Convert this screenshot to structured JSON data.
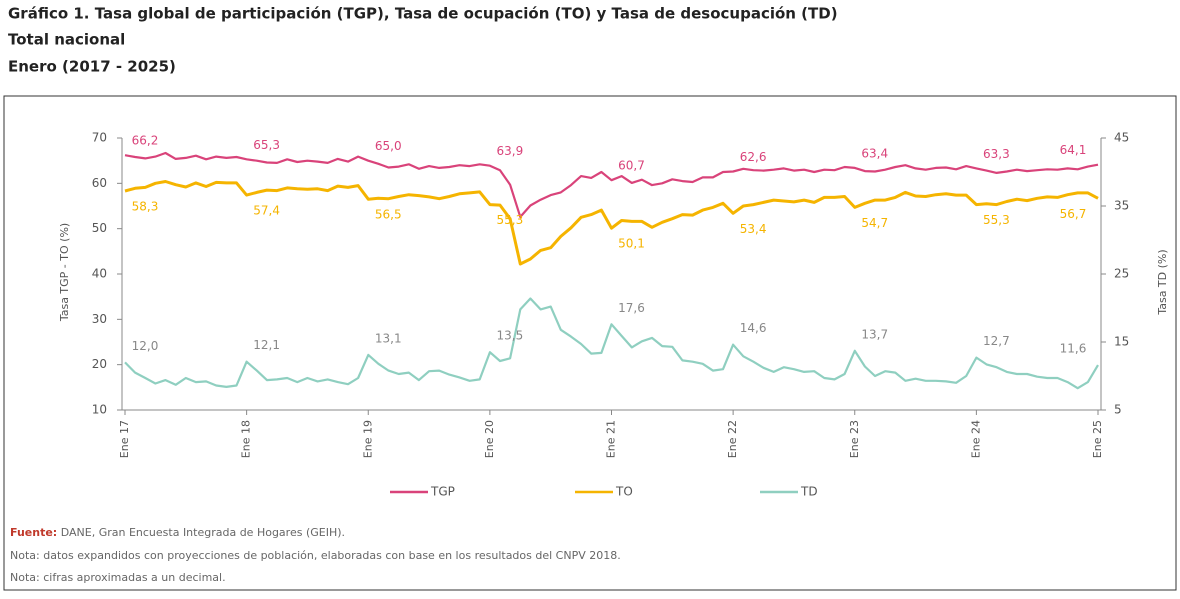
{
  "chart_data": {
    "type": "line",
    "title": "Gráfico 1. Tasa global de participación (TGP), Tasa de ocupación (TO) y Tasa de desocupación (TD)",
    "subtitle": [
      "Total nacional",
      "Enero (2017 - 2025)"
    ],
    "ylabel": "Tasa TGP - TO (%)",
    "y2label": "Tasa TD (%)",
    "categories": [
      "Ene 17",
      null,
      null,
      null,
      null,
      null,
      null,
      null,
      null,
      null,
      null,
      null,
      "Ene 18",
      null,
      null,
      null,
      null,
      null,
      null,
      null,
      null,
      null,
      null,
      null,
      "Ene 19",
      null,
      null,
      null,
      null,
      null,
      null,
      null,
      null,
      null,
      null,
      null,
      "Ene 20",
      null,
      null,
      null,
      null,
      null,
      null,
      null,
      null,
      null,
      null,
      null,
      "Ene 21",
      null,
      null,
      null,
      null,
      null,
      null,
      null,
      null,
      null,
      null,
      null,
      "Ene 22",
      null,
      null,
      null,
      null,
      null,
      null,
      null,
      null,
      null,
      null,
      null,
      "Ene 23",
      null,
      null,
      null,
      null,
      null,
      null,
      null,
      null,
      null,
      null,
      null,
      "Ene 24",
      null,
      null,
      null,
      null,
      null,
      null,
      null,
      null,
      null,
      null,
      null,
      "Ene 25"
    ],
    "ylim": [
      10,
      70
    ],
    "yticks": [
      10,
      20,
      30,
      40,
      50,
      60,
      70
    ],
    "y2lim": [
      5,
      45
    ],
    "y2ticks": [
      5,
      15,
      25,
      35,
      45
    ],
    "legend": "bottom",
    "series": [
      {
        "name": "TGP",
        "color": "#d9437a",
        "values": [
          66.2,
          65.8,
          65.5,
          65.9,
          66.7,
          65.4,
          65.6,
          66.1,
          65.3,
          65.9,
          65.6,
          65.8,
          65.3,
          65.0,
          64.6,
          64.5,
          65.3,
          64.7,
          65.0,
          64.8,
          64.5,
          65.4,
          64.8,
          65.9,
          65.0,
          64.3,
          63.5,
          63.7,
          64.2,
          63.2,
          63.8,
          63.4,
          63.6,
          64.0,
          63.8,
          64.2,
          63.9,
          62.9,
          59.7,
          52.6,
          55.1,
          56.4,
          57.4,
          58.0,
          59.6,
          61.6,
          61.2,
          62.5,
          60.7,
          61.6,
          60.1,
          60.8,
          59.6,
          60.0,
          60.9,
          60.5,
          60.3,
          61.3,
          61.3,
          62.5,
          62.6,
          63.2,
          62.9,
          62.8,
          63.0,
          63.3,
          62.8,
          63.0,
          62.5,
          63.0,
          62.9,
          63.6,
          63.4,
          62.7,
          62.6,
          63.0,
          63.6,
          64.0,
          63.3,
          63.0,
          63.4,
          63.5,
          63.1,
          63.8,
          63.3,
          62.8,
          62.3,
          62.6,
          63.0,
          62.7,
          62.9,
          63.1,
          63.0,
          63.3,
          63.1,
          63.7,
          64.1
        ],
        "value_labels": [
          "66,2",
          null,
          null,
          null,
          null,
          null,
          null,
          null,
          null,
          null,
          null,
          null,
          "65,3",
          null,
          null,
          null,
          null,
          null,
          null,
          null,
          null,
          null,
          null,
          null,
          "65,0",
          null,
          null,
          null,
          null,
          null,
          null,
          null,
          null,
          null,
          null,
          null,
          "63,9",
          null,
          null,
          null,
          null,
          null,
          null,
          null,
          null,
          null,
          null,
          null,
          "60,7",
          null,
          null,
          null,
          null,
          null,
          null,
          null,
          null,
          null,
          null,
          null,
          "62,6",
          null,
          null,
          null,
          null,
          null,
          null,
          null,
          null,
          null,
          null,
          null,
          "63,4",
          null,
          null,
          null,
          null,
          null,
          null,
          null,
          null,
          null,
          null,
          null,
          "63,3",
          null,
          null,
          null,
          null,
          null,
          null,
          null,
          null,
          null,
          null,
          null,
          "64,1"
        ]
      },
      {
        "name": "TO",
        "color": "#f5b400",
        "values": [
          58.3,
          58.9,
          59.1,
          60.0,
          60.4,
          59.7,
          59.2,
          60.1,
          59.3,
          60.2,
          60.1,
          60.1,
          57.4,
          58.0,
          58.5,
          58.4,
          59.0,
          58.8,
          58.7,
          58.8,
          58.4,
          59.4,
          59.1,
          59.5,
          56.5,
          56.7,
          56.6,
          57.1,
          57.5,
          57.3,
          57.0,
          56.6,
          57.1,
          57.7,
          57.9,
          58.1,
          55.3,
          55.2,
          52.2,
          42.2,
          43.3,
          45.2,
          45.8,
          48.3,
          50.2,
          52.5,
          53.1,
          54.1,
          50.1,
          51.8,
          51.6,
          51.6,
          50.3,
          51.4,
          52.2,
          53.1,
          53.0,
          54.1,
          54.7,
          55.6,
          53.4,
          55.0,
          55.3,
          55.8,
          56.3,
          56.1,
          55.9,
          56.3,
          55.8,
          56.9,
          56.9,
          57.1,
          54.7,
          55.6,
          56.3,
          56.3,
          56.9,
          58.0,
          57.2,
          57.1,
          57.5,
          57.7,
          57.4,
          57.4,
          55.3,
          55.5,
          55.3,
          56.0,
          56.5,
          56.2,
          56.7,
          57.0,
          56.9,
          57.5,
          57.9,
          57.9,
          56.7
        ],
        "value_labels": [
          "58,3",
          null,
          null,
          null,
          null,
          null,
          null,
          null,
          null,
          null,
          null,
          null,
          "57,4",
          null,
          null,
          null,
          null,
          null,
          null,
          null,
          null,
          null,
          null,
          null,
          "56,5",
          null,
          null,
          null,
          null,
          null,
          null,
          null,
          null,
          null,
          null,
          null,
          "55,3",
          null,
          null,
          null,
          null,
          null,
          null,
          null,
          null,
          null,
          null,
          null,
          "50,1",
          null,
          null,
          null,
          null,
          null,
          null,
          null,
          null,
          null,
          null,
          null,
          "53,4",
          null,
          null,
          null,
          null,
          null,
          null,
          null,
          null,
          null,
          null,
          null,
          "54,7",
          null,
          null,
          null,
          null,
          null,
          null,
          null,
          null,
          null,
          null,
          null,
          "55,3",
          null,
          null,
          null,
          null,
          null,
          null,
          null,
          null,
          null,
          null,
          null,
          "56,7"
        ]
      },
      {
        "name": "TD",
        "color": "#8fcfc0",
        "axis": "y2",
        "values": [
          12.0,
          10.5,
          9.7,
          8.9,
          9.4,
          8.7,
          9.7,
          9.1,
          9.2,
          8.6,
          8.4,
          8.6,
          12.1,
          10.8,
          9.4,
          9.5,
          9.7,
          9.1,
          9.7,
          9.2,
          9.5,
          9.1,
          8.8,
          9.7,
          13.1,
          11.8,
          10.8,
          10.3,
          10.5,
          9.4,
          10.7,
          10.8,
          10.2,
          9.8,
          9.3,
          9.5,
          13.5,
          12.2,
          12.6,
          19.8,
          21.4,
          19.8,
          20.2,
          16.8,
          15.8,
          14.7,
          13.3,
          13.4,
          17.6,
          15.9,
          14.2,
          15.1,
          15.6,
          14.4,
          14.3,
          12.3,
          12.1,
          11.8,
          10.8,
          11.0,
          14.6,
          12.9,
          12.1,
          11.2,
          10.6,
          11.3,
          11.0,
          10.6,
          10.7,
          9.7,
          9.5,
          10.3,
          13.7,
          11.4,
          10.0,
          10.7,
          10.5,
          9.3,
          9.6,
          9.3,
          9.3,
          9.2,
          9.0,
          10.0,
          12.7,
          11.7,
          11.3,
          10.6,
          10.3,
          10.3,
          9.9,
          9.7,
          9.7,
          9.1,
          8.2,
          9.1,
          11.6
        ],
        "value_labels": [
          "12,0",
          null,
          null,
          null,
          null,
          null,
          null,
          null,
          null,
          null,
          null,
          null,
          "12,1",
          null,
          null,
          null,
          null,
          null,
          null,
          null,
          null,
          null,
          null,
          null,
          "13,1",
          null,
          null,
          null,
          null,
          null,
          null,
          null,
          null,
          null,
          null,
          null,
          "13,5",
          null,
          null,
          null,
          null,
          null,
          null,
          null,
          null,
          null,
          null,
          null,
          "17,6",
          null,
          null,
          null,
          null,
          null,
          null,
          null,
          null,
          null,
          null,
          null,
          "14,6",
          null,
          null,
          null,
          null,
          null,
          null,
          null,
          null,
          null,
          null,
          null,
          "13,7",
          null,
          null,
          null,
          null,
          null,
          null,
          null,
          null,
          null,
          null,
          null,
          "12,7",
          null,
          null,
          null,
          null,
          null,
          null,
          null,
          null,
          null,
          null,
          null,
          "11,6"
        ]
      }
    ]
  },
  "footer": {
    "source_label": "Fuente:",
    "source": "DANE, Gran Encuesta Integrada de Hogares (GEIH).",
    "notes": [
      "Nota: datos expandidos con proyecciones de población, elaboradas con base en los resultados del CNPV 2018.",
      "Nota: cifras aproximadas a un decimal."
    ]
  }
}
